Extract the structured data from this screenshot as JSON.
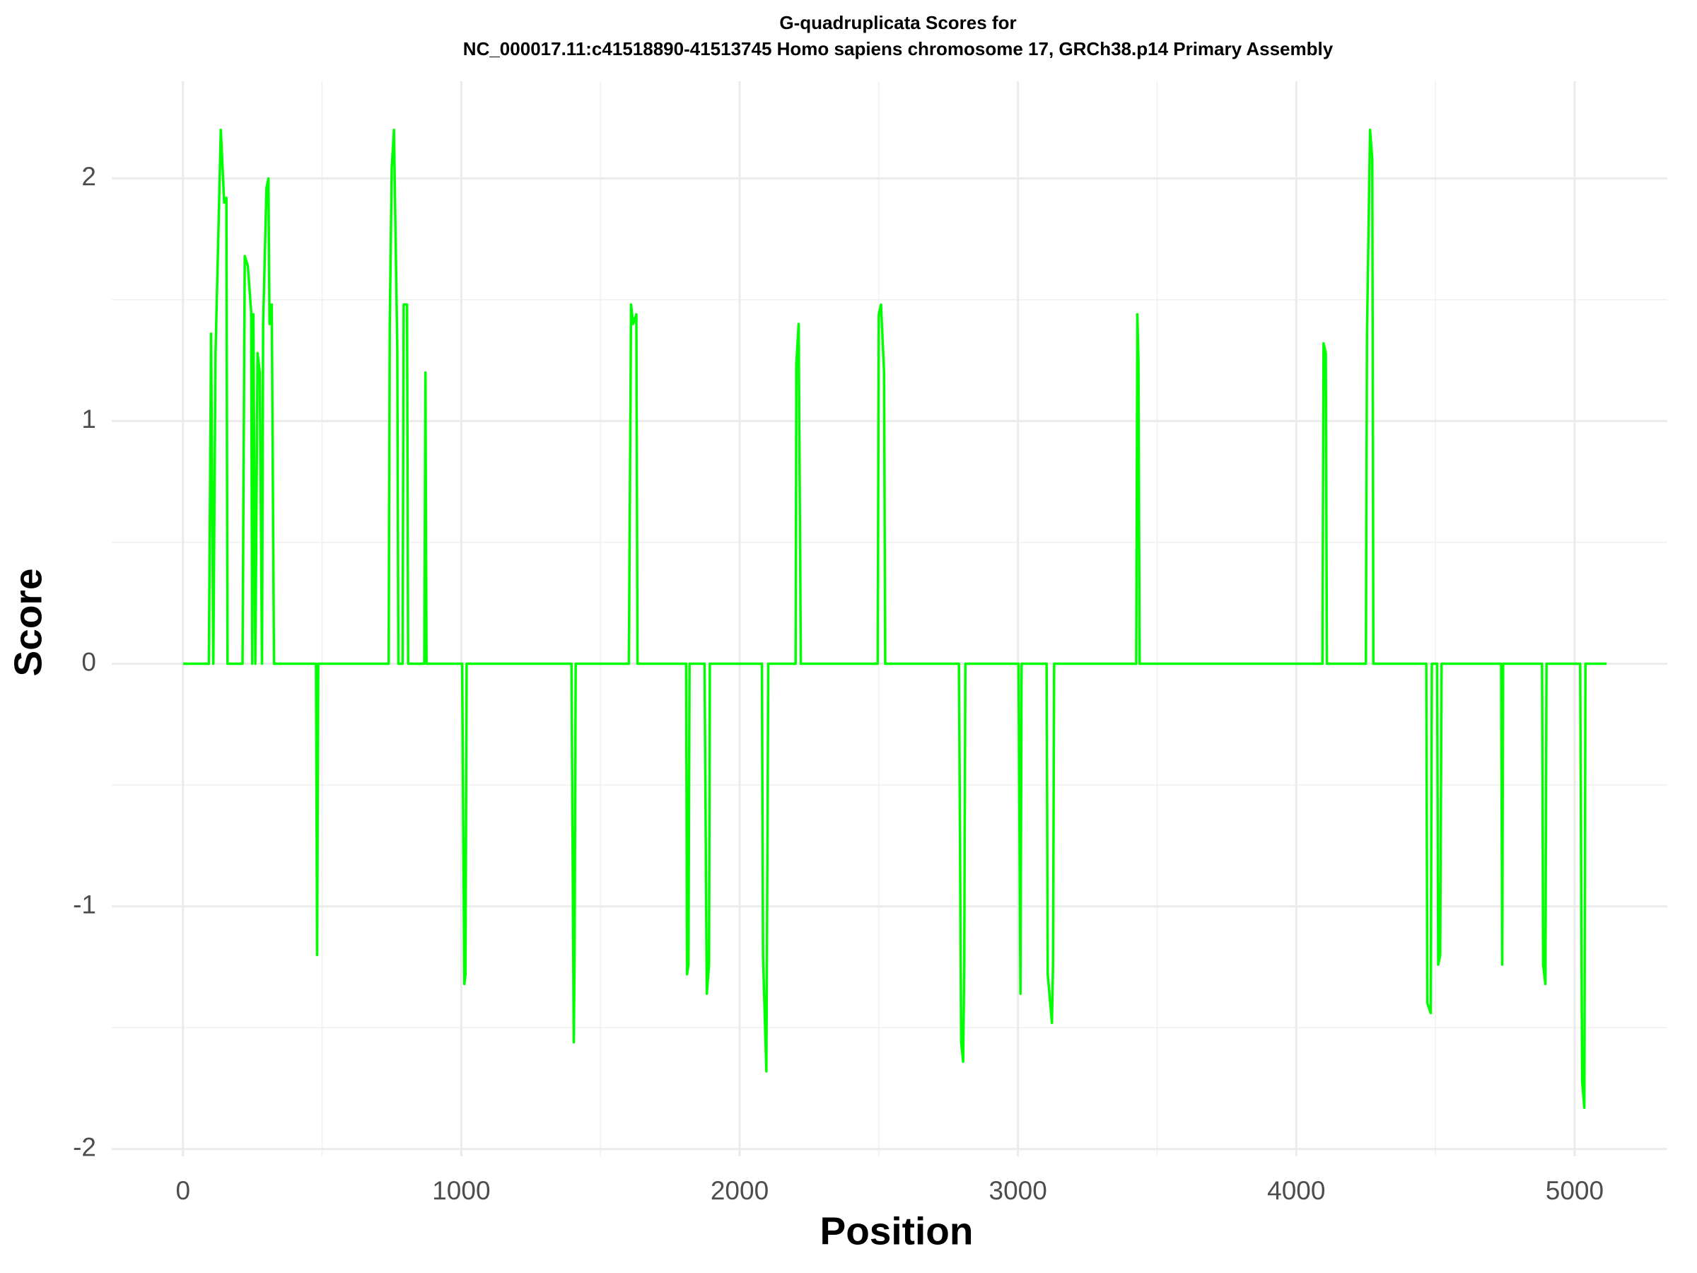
{
  "chart_data": {
    "type": "line",
    "title": [
      "G-quadruplicata Scores for",
      "NC_000017.11:c41518890-41513745 Homo sapiens chromosome 17, GRCh38.p14 Primary Assembly"
    ],
    "x_label": "Position",
    "y_label": "Score",
    "xlim": [
      -256,
      5333
    ],
    "ylim": [
      -2.03,
      2.4
    ],
    "xticks": [
      0,
      1000,
      2000,
      3000,
      4000,
      5000
    ],
    "yticks": [
      -2,
      -1,
      0,
      1,
      2
    ],
    "x_minor_ticks": [
      500,
      1500,
      2500,
      3500,
      4500
    ],
    "y_minor_ticks": [
      -1.5,
      -0.5,
      0.5,
      1.5
    ],
    "grid": true,
    "series": [
      {
        "name": "Score",
        "color": "#00ff00",
        "x": [
          0,
          93,
          101,
          109,
          117,
          136,
          148,
          156,
          160,
          214,
          222,
          233,
          245,
          249,
          253,
          260,
          268,
          276,
          284,
          288,
          300,
          307,
          311,
          319,
          327,
          478,
          482,
          486,
          739,
          743,
          750,
          758,
          770,
          774,
          789,
          793,
          805,
          809,
          867,
          871,
          875,
          1003,
          1011,
          1015,
          1019,
          1396,
          1404,
          1407,
          1411,
          1602,
          1610,
          1617,
          1629,
          1633,
          1808,
          1811,
          1816,
          1820,
          1874,
          1882,
          1890,
          1893,
          2080,
          2084,
          2096,
          2103,
          2201,
          2204,
          2212,
          2220,
          2496,
          2500,
          2508,
          2519,
          2523,
          2788,
          2796,
          2803,
          2807,
          2811,
          3002,
          3009,
          3013,
          3103,
          3107,
          3122,
          3126,
          3130,
          3425,
          3429,
          3433,
          3437,
          4094,
          4098,
          4106,
          4110,
          4250,
          4254,
          4265,
          4273,
          4277,
          4467,
          4471,
          4483,
          4487,
          4506,
          4510,
          4517,
          4522,
          4736,
          4740,
          4743,
          4883,
          4887,
          4895,
          4899,
          5020,
          5027,
          5035,
          5039,
          5115
        ],
        "values": [
          0,
          0,
          1.36,
          0,
          1.28,
          2.2,
          1.9,
          1.92,
          0,
          0,
          1.68,
          1.64,
          1.45,
          0,
          1.44,
          0,
          1.28,
          1.2,
          0,
          1.4,
          1.96,
          2.0,
          1.4,
          1.48,
          0,
          0,
          -1.2,
          0,
          0,
          1.4,
          2.04,
          2.2,
          1.3,
          0,
          0,
          1.48,
          1.48,
          0,
          0,
          1.2,
          0,
          0,
          -1.32,
          -1.28,
          0,
          0,
          -1.56,
          -1.2,
          0,
          0,
          1.48,
          1.4,
          1.44,
          0,
          0,
          -1.28,
          -1.24,
          0,
          0,
          -1.36,
          -1.24,
          0,
          0,
          -1.2,
          -1.68,
          0,
          0,
          1.24,
          1.4,
          0,
          0,
          1.44,
          1.48,
          1.2,
          0,
          0,
          -1.56,
          -1.64,
          -1.24,
          0,
          0,
          -1.36,
          0,
          0,
          -1.28,
          -1.48,
          -1.24,
          0,
          0,
          1.44,
          1.24,
          0,
          0,
          1.32,
          1.28,
          0,
          0,
          1.36,
          2.2,
          2.08,
          0,
          0,
          -1.4,
          -1.44,
          0,
          0,
          -1.24,
          -1.2,
          0,
          0,
          -1.24,
          0,
          0,
          -1.24,
          -1.32,
          0,
          0,
          -1.72,
          -1.83,
          0,
          0
        ]
      }
    ]
  }
}
